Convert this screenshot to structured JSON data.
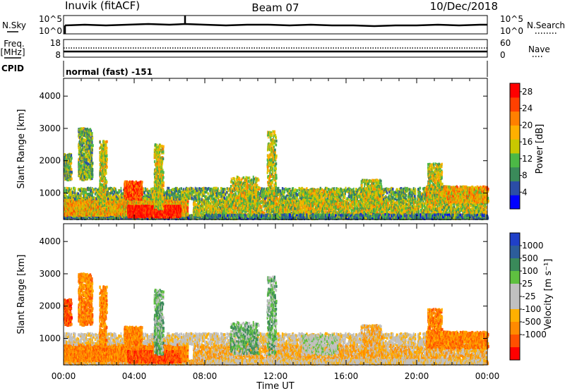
{
  "header": {
    "station": "Inuvik (fitACF)",
    "beam": "Beam 07",
    "date": "10/Dec/2018"
  },
  "panels": {
    "nsky_label": "N.Sky",
    "nsky_ticks": [
      "10^5",
      "10^0"
    ],
    "nsearch_label": "N.Search",
    "nsearch_ticks": [
      "10^5",
      "10^0"
    ],
    "freq_label_line1": "Freq.",
    "freq_label_line2": "[MHz]",
    "freq_ticks": [
      "18",
      "8"
    ],
    "nave_label": "Nave",
    "nave_ticks": [
      "60",
      "0"
    ],
    "cpid_label": "CPID",
    "cpid_value": "normal (fast) -151"
  },
  "colors": {
    "power_scale": [
      "#0000ff",
      "#2b4da6",
      "#3a8a5a",
      "#4cb846",
      "#c8c800",
      "#ffb000",
      "#ff8000",
      "#ff4000",
      "#ff0000"
    ],
    "velocity_scale": [
      "#2040c8",
      "#2c5d9a",
      "#3a8a5a",
      "#5fc040",
      "#c0c0c0",
      "#c0c0c0",
      "#ffb000",
      "#ff8a00",
      "#ff5000",
      "#ff0000"
    ]
  },
  "chart_data": [
    {
      "type": "heatmap",
      "name": "power",
      "ylabel": "Slant Range [km]",
      "yticks": [
        "1000",
        "2000",
        "3000",
        "4000"
      ],
      "xticks": [
        "00:00",
        "04:00",
        "08:00",
        "12:00",
        "16:00",
        "20:00",
        "00:00"
      ],
      "xlabel": "Time UT",
      "ylim": [
        180,
        4550
      ],
      "colorbar_label": "Power [dB]",
      "colorbar_ticks": [
        "4",
        "8",
        "12",
        "16",
        "20",
        "24",
        "28"
      ],
      "colorbar_range": [
        0,
        30
      ]
    },
    {
      "type": "heatmap",
      "name": "velocity",
      "ylabel": "Slant Range [km]",
      "yticks": [
        "1000",
        "2000",
        "3000",
        "4000"
      ],
      "xticks": [
        "00:00",
        "04:00",
        "08:00",
        "12:00",
        "16:00",
        "20:00",
        "00:00"
      ],
      "xlabel": "Time UT",
      "ylim": [
        180,
        4550
      ],
      "colorbar_label": "Velocity [m s⁻¹]",
      "colorbar_ticks": [
        "1000",
        "500",
        "100",
        "25",
        "-25",
        "-100",
        "-500",
        "-1000"
      ]
    }
  ]
}
